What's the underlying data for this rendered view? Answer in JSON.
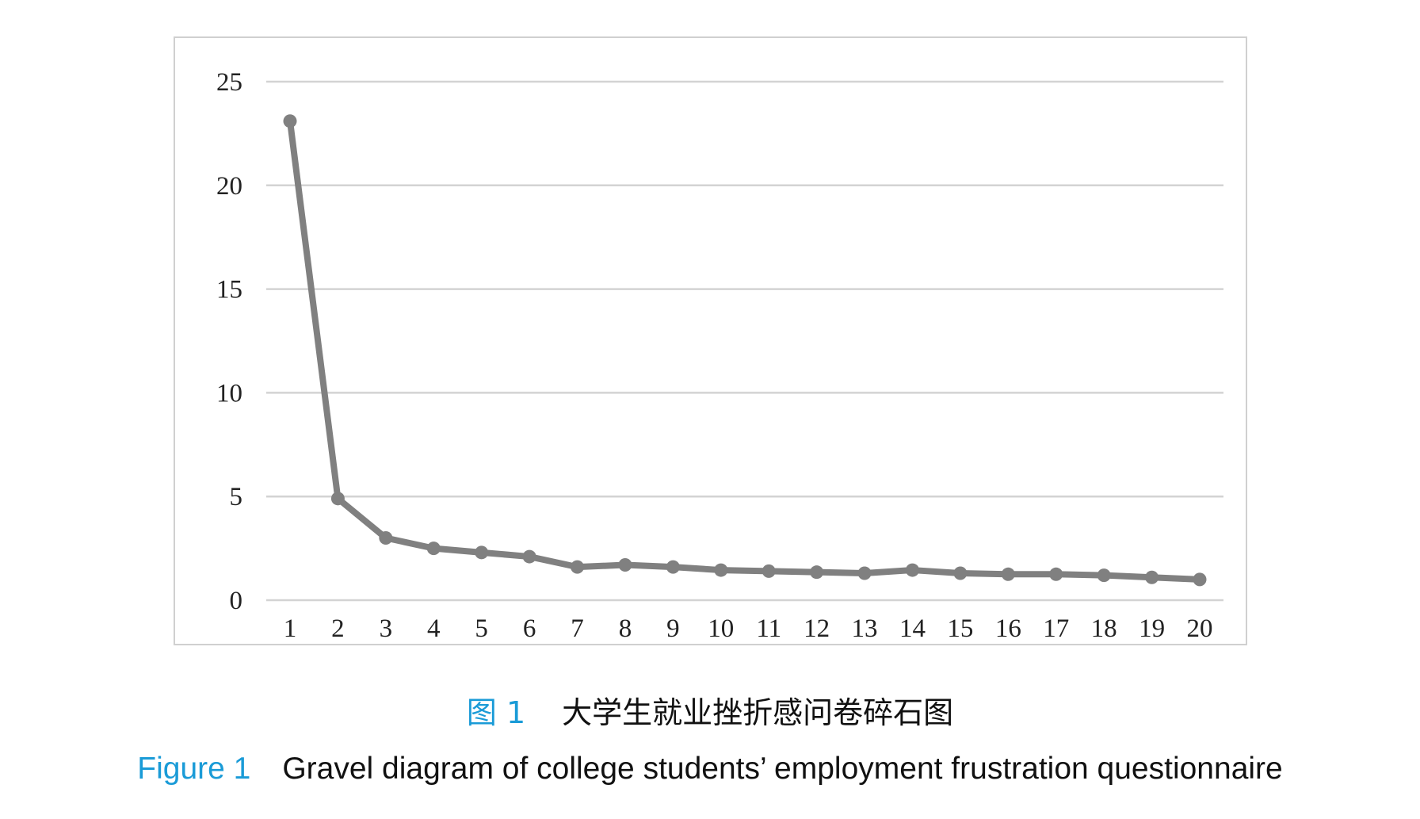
{
  "chart_data": {
    "type": "line",
    "categories": [
      "1",
      "2",
      "3",
      "4",
      "5",
      "6",
      "7",
      "8",
      "9",
      "10",
      "11",
      "12",
      "13",
      "14",
      "15",
      "16",
      "17",
      "18",
      "19",
      "20"
    ],
    "series": [
      {
        "values": [
          23.1,
          4.9,
          3.0,
          2.5,
          2.3,
          2.1,
          1.6,
          1.7,
          1.6,
          1.45,
          1.4,
          1.35,
          1.3,
          1.45,
          1.3,
          1.25,
          1.25,
          1.2,
          1.1,
          1.0
        ]
      }
    ],
    "yticks": [
      "0",
      "5",
      "10",
      "15",
      "20",
      "25"
    ],
    "ylim": [
      0,
      25
    ],
    "grid": true,
    "legend": "none",
    "colors": {
      "line": "#808080",
      "grid": "#d3d3d3",
      "frame": "#d0d0d0"
    }
  },
  "caption": {
    "cn_label": "图 1",
    "cn_text": "大学生就业挫折感问卷碎石图",
    "en_label": "Figure 1",
    "en_text": "Gravel diagram of college students’ employment frustration questionnaire",
    "label_color": "#1a9bd7"
  }
}
